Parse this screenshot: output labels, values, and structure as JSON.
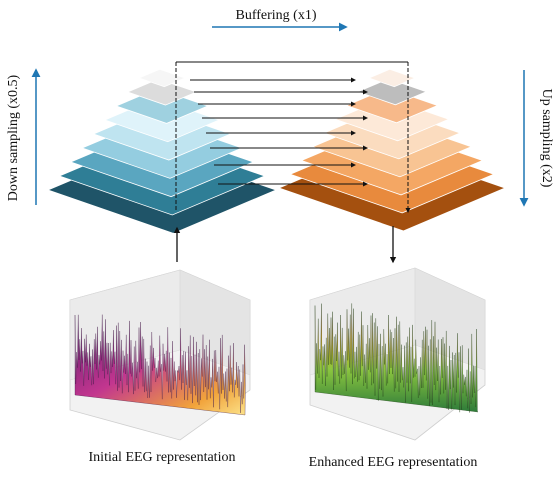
{
  "labels": {
    "buffering": "Buffering (x1)",
    "down_sampling": "Down sampling (x0.5)",
    "up_sampling": "Up sampling (x2)",
    "initial": "Initial EEG representation",
    "enhanced": "Enhanced EEG representation"
  },
  "pyramid_left": {
    "levels": 8,
    "colors": [
      "#1f5468",
      "#2f7e96",
      "#5aa6c0",
      "#94cde0",
      "#bfe4f0",
      "#dff3fa",
      "#9fd1e0",
      "#dcdcdc",
      "#f6f6f6"
    ]
  },
  "pyramid_right": {
    "levels": 8,
    "colors": [
      "#a4500f",
      "#e88a3d",
      "#f4a764",
      "#f8c493",
      "#fbdcbf",
      "#fde9d8",
      "#f7b98a",
      "#bdbdbd",
      "#fbeee4"
    ]
  },
  "colors": {
    "arrow_blue": "#1f77b4",
    "connector": "#111111"
  }
}
